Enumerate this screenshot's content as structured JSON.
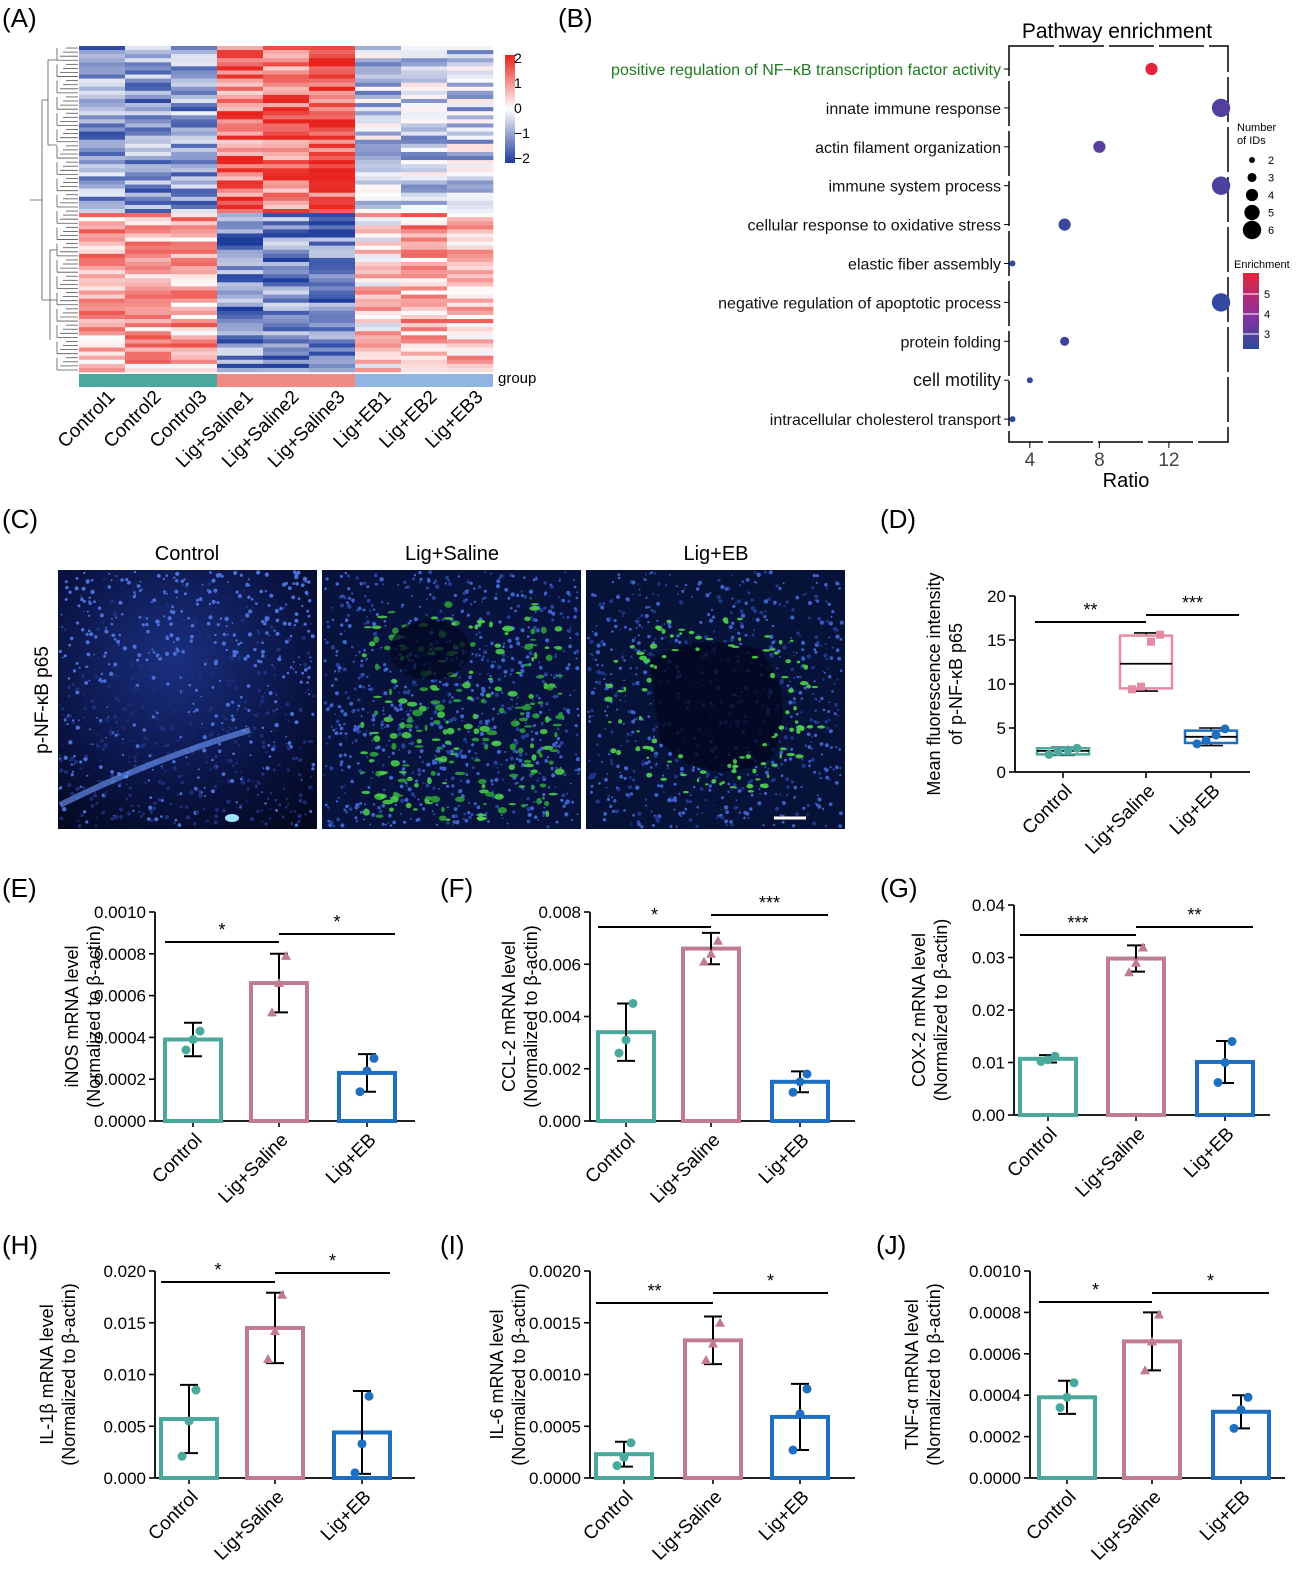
{
  "colors": {
    "control": "#4aa99c",
    "saline": "#c07b8e",
    "eb": "#1f6fc1",
    "heat_high": "#e8231d",
    "heat_low": "#1d3b9c",
    "go_green": "#1e7b1e",
    "enrich_high": "#e8233a",
    "enrich_mid": "#8c2f9f",
    "enrich_low": "#2d4a9e"
  },
  "panels": {
    "A": "(A)",
    "B": "(B)",
    "C": "(C)",
    "D": "(D)",
    "E": "(E)",
    "F": "(F)",
    "G": "(G)",
    "H": "(H)",
    "I": "(I)",
    "J": "(J)"
  },
  "heatmap": {
    "columns": [
      "Control1",
      "Control2",
      "Control3",
      "Lig+Saline1",
      "Lig+Saline2",
      "Lig+Saline3",
      "Lig+EB1",
      "Lig+EB2",
      "Lig+EB3"
    ],
    "group_label": "group",
    "scale_ticks": [
      "2",
      "1",
      "0",
      "−1",
      "−2"
    ]
  },
  "micrograph": {
    "titles": [
      "Control",
      "Lig+Saline",
      "Lig+EB"
    ],
    "row_label": "p-NF-κB p65"
  },
  "chart_data": [
    {
      "panel": "B",
      "type": "scatter",
      "title": "Pathway enrichment",
      "xlabel": "Ratio",
      "xticks": [
        4,
        8,
        12
      ],
      "xlim": [
        2.8,
        15.4
      ],
      "categories": [
        "positive regulation of NF−κB transcription factor activity",
        "innate immune response",
        "actin filament organization",
        "immune system process",
        "cellular response to oxidative stress",
        "elastic fiber assembly",
        "negative regulation of apoptotic process",
        "protein folding",
        "cell motility",
        "intracellular cholesterol transport"
      ],
      "points": [
        {
          "ratio": 11,
          "ids": 4,
          "enrichment": 5.4
        },
        {
          "ratio": 15,
          "ids": 6,
          "enrichment": 3.1
        },
        {
          "ratio": 8,
          "ids": 4,
          "enrichment": 3.2
        },
        {
          "ratio": 15,
          "ids": 6,
          "enrichment": 3.0
        },
        {
          "ratio": 6,
          "ids": 4,
          "enrichment": 2.7
        },
        {
          "ratio": 3,
          "ids": 2,
          "enrichment": 2.6
        },
        {
          "ratio": 15,
          "ids": 6,
          "enrichment": 2.6
        },
        {
          "ratio": 6,
          "ids": 3,
          "enrichment": 2.7
        },
        {
          "ratio": 4,
          "ids": 2,
          "enrichment": 2.6
        },
        {
          "ratio": 3,
          "ids": 2,
          "enrichment": 2.5
        }
      ],
      "size_legend": {
        "title": [
          "Number",
          "of IDs"
        ],
        "values": [
          2,
          3,
          4,
          5,
          6
        ]
      },
      "color_legend": {
        "title": "Enrichment",
        "ticks": [
          5,
          4,
          3
        ]
      }
    },
    {
      "panel": "D",
      "type": "box",
      "ylabel": [
        "Mean fluorescence intensity",
        "of  p-NF-κB p65"
      ],
      "ylim": [
        0,
        20
      ],
      "yticks": [
        "0",
        "5",
        "10",
        "15",
        "20"
      ],
      "categories": [
        "Control",
        "Lig+Saline",
        "Lig+EB"
      ],
      "boxes": [
        {
          "min": 1.9,
          "q1": 2.0,
          "median": 2.4,
          "q3": 2.7,
          "max": 2.8,
          "points": [
            2.0,
            2.3,
            2.5,
            2.7
          ]
        },
        {
          "min": 9.2,
          "q1": 9.5,
          "median": 12.3,
          "q3": 15.5,
          "max": 15.8,
          "points": [
            9.4,
            9.7,
            14.8,
            15.6
          ]
        },
        {
          "min": 3.0,
          "q1": 3.3,
          "median": 4.0,
          "q3": 4.7,
          "max": 5.0,
          "points": [
            3.2,
            3.6,
            4.2,
            4.9
          ]
        }
      ],
      "significance": [
        {
          "pair": [
            0,
            1
          ],
          "label": "**"
        },
        {
          "pair": [
            1,
            2
          ],
          "label": "***"
        }
      ]
    },
    {
      "panel": "E",
      "type": "bar",
      "ylabel": [
        "iNOS mRNA level",
        "(Normalized to β-actin)"
      ],
      "ylim": [
        0,
        0.001
      ],
      "yticks": [
        "0.0000",
        "0.0002",
        "0.0004",
        "0.0006",
        "0.0008",
        "0.0010"
      ],
      "categories": [
        "Control",
        "Lig+Saline",
        "Lig+EB"
      ],
      "values": [
        0.00039,
        0.00066,
        0.00023
      ],
      "errors": [
        8e-05,
        0.00014,
        9e-05
      ],
      "points": [
        [
          0.00034,
          0.00039,
          0.00043
        ],
        [
          0.00052,
          0.00066,
          0.00079
        ],
        [
          0.00014,
          0.00024,
          0.0003
        ]
      ],
      "significance": [
        {
          "pair": [
            0,
            1
          ],
          "label": "*"
        },
        {
          "pair": [
            1,
            2
          ],
          "label": "*"
        }
      ]
    },
    {
      "panel": "F",
      "type": "bar",
      "ylabel": [
        "CCL-2 mRNA level",
        "(Normalized to β-actin)"
      ],
      "ylim": [
        0,
        0.008
      ],
      "yticks": [
        "0.000",
        "0.002",
        "0.004",
        "0.006",
        "0.008"
      ],
      "categories": [
        "Control",
        "Lig+Saline",
        "Lig+EB"
      ],
      "values": [
        0.0034,
        0.0066,
        0.0015
      ],
      "errors": [
        0.0011,
        0.0006,
        0.0004
      ],
      "points": [
        [
          0.0026,
          0.0031,
          0.0045
        ],
        [
          0.0061,
          0.0064,
          0.0069
        ],
        [
          0.0011,
          0.0015,
          0.0018
        ]
      ],
      "significance": [
        {
          "pair": [
            0,
            1
          ],
          "label": "*"
        },
        {
          "pair": [
            1,
            2
          ],
          "label": "***"
        }
      ]
    },
    {
      "panel": "G",
      "type": "bar",
      "ylabel": [
        "COX-2 mRNA level",
        "(Normalized to β-actin)"
      ],
      "ylim": [
        0,
        0.04
      ],
      "yticks": [
        "0.00",
        "0.01",
        "0.02",
        "0.03",
        "0.04"
      ],
      "categories": [
        "Control",
        "Lig+Saline",
        "Lig+EB"
      ],
      "values": [
        0.0107,
        0.0298,
        0.0101
      ],
      "errors": [
        0.0007,
        0.0025,
        0.004
      ],
      "points": [
        [
          0.0102,
          0.0105,
          0.0112
        ],
        [
          0.0272,
          0.029,
          0.0319
        ],
        [
          0.0062,
          0.01,
          0.014
        ]
      ],
      "significance": [
        {
          "pair": [
            0,
            1
          ],
          "label": "***"
        },
        {
          "pair": [
            1,
            2
          ],
          "label": "**"
        }
      ]
    },
    {
      "panel": "H",
      "type": "bar",
      "ylabel": [
        "IL-1β mRNA level",
        "(Normalized to β-actin)"
      ],
      "ylim": [
        0,
        0.02
      ],
      "yticks": [
        "0.000",
        "0.005",
        "0.010",
        "0.015",
        "0.020"
      ],
      "categories": [
        "Control",
        "Lig+Saline",
        "Lig+EB"
      ],
      "values": [
        0.0057,
        0.0145,
        0.0044
      ],
      "errors": [
        0.0033,
        0.0034,
        0.004
      ],
      "points": [
        [
          0.0021,
          0.0055,
          0.0085
        ],
        [
          0.0115,
          0.0142,
          0.0177
        ],
        [
          0.0005,
          0.0033,
          0.0079
        ]
      ],
      "significance": [
        {
          "pair": [
            0,
            1
          ],
          "label": "*"
        },
        {
          "pair": [
            1,
            2
          ],
          "label": "*"
        }
      ]
    },
    {
      "panel": "I",
      "type": "bar",
      "ylabel": [
        "IL-6 mRNA level",
        "(Normalized to β-actin)"
      ],
      "ylim": [
        0,
        0.002
      ],
      "yticks": [
        "0.0000",
        "0.0005",
        "0.0010",
        "0.0015",
        "0.0020"
      ],
      "categories": [
        "Control",
        "Lig+Saline",
        "Lig+EB"
      ],
      "values": [
        0.00023,
        0.00133,
        0.00059
      ],
      "errors": [
        0.00012,
        0.00023,
        0.00032
      ],
      "points": [
        [
          0.00012,
          0.0002,
          0.00034
        ],
        [
          0.00114,
          0.0013,
          0.0015
        ],
        [
          0.00027,
          0.00062,
          0.00086
        ]
      ],
      "significance": [
        {
          "pair": [
            0,
            1
          ],
          "label": "**"
        },
        {
          "pair": [
            1,
            2
          ],
          "label": "*"
        }
      ]
    },
    {
      "panel": "J",
      "type": "bar",
      "ylabel": [
        "TNF-α mRNA level",
        "(Normalized to β-actin)"
      ],
      "ylim": [
        0,
        0.001
      ],
      "yticks": [
        "0.0000",
        "0.0002",
        "0.0004",
        "0.0006",
        "0.0008",
        "0.0010"
      ],
      "categories": [
        "Control",
        "Lig+Saline",
        "Lig+EB"
      ],
      "values": [
        0.00039,
        0.00066,
        0.00032
      ],
      "errors": [
        8e-05,
        0.00014,
        8e-05
      ],
      "points": [
        [
          0.00034,
          0.00039,
          0.00046
        ],
        [
          0.00052,
          0.00066,
          0.00079
        ],
        [
          0.00024,
          0.00033,
          0.00039
        ]
      ],
      "significance": [
        {
          "pair": [
            0,
            1
          ],
          "label": "*"
        },
        {
          "pair": [
            1,
            2
          ],
          "label": "*"
        }
      ]
    }
  ]
}
